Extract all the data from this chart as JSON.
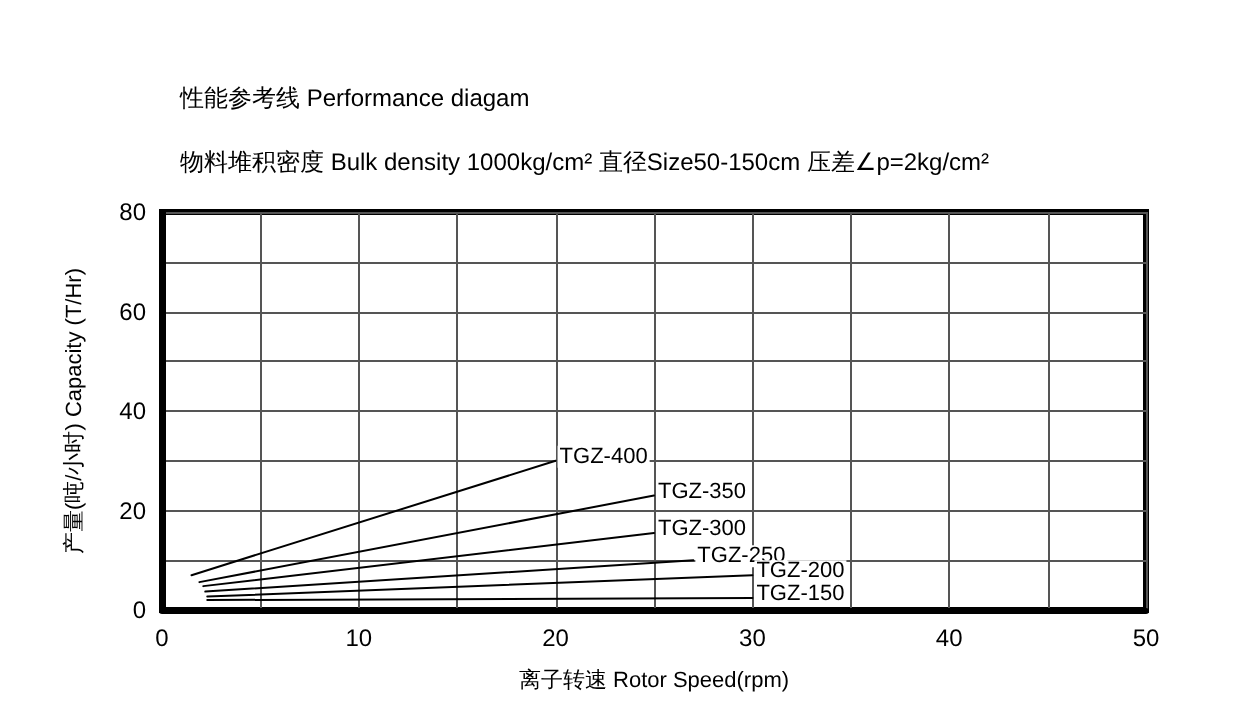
{
  "chart_data": {
    "type": "line",
    "title": "性能参考线 Performance diagam",
    "subtitle": "物料堆积密度 Bulk density 1000kg/cm² 直径Size50-150cm 压差∠p=2kg/cm²",
    "xlabel": "离子转速 Rotor Speed(rpm)",
    "ylabel": "产量(吨/小时) Capacity (T/Hr)",
    "xlim": [
      0,
      50
    ],
    "ylim": [
      0,
      80
    ],
    "xticks": [
      0,
      {
        "value": 5,
        "label": null
      },
      10,
      {
        "value": 15,
        "label": null
      },
      20,
      {
        "value": 25,
        "label": null
      },
      30,
      {
        "value": 35,
        "label": null
      },
      40,
      {
        "value": 45,
        "label": null
      },
      50
    ],
    "yticks": [
      0,
      {
        "value": 10,
        "label": null
      },
      20,
      {
        "value": 30,
        "label": null
      },
      40,
      {
        "value": 50,
        "label": null
      },
      60,
      {
        "value": 70,
        "label": null
      },
      80
    ],
    "grid": true,
    "legend": false,
    "marker": "none",
    "line_style": "solid",
    "series": [
      {
        "name": "TGZ-400",
        "color": "#000000",
        "x": [
          1.5,
          20
        ],
        "values": [
          7,
          30
        ]
      },
      {
        "name": "TGZ-350",
        "color": "#000000",
        "x": [
          1.9,
          25
        ],
        "values": [
          5.6,
          23
        ]
      },
      {
        "name": "TGZ-300",
        "color": "#000000",
        "x": [
          2.1,
          25
        ],
        "values": [
          4.8,
          15.5
        ]
      },
      {
        "name": "TGZ-250",
        "color": "#000000",
        "x": [
          2.2,
          27
        ],
        "values": [
          3.7,
          10
        ]
      },
      {
        "name": "TGZ-200",
        "color": "#000000",
        "x": [
          2.3,
          30
        ],
        "values": [
          2.7,
          7
        ]
      },
      {
        "name": "TGZ-150",
        "color": "#000000",
        "x": [
          2.3,
          30
        ],
        "values": [
          2,
          2.4
        ]
      }
    ]
  }
}
